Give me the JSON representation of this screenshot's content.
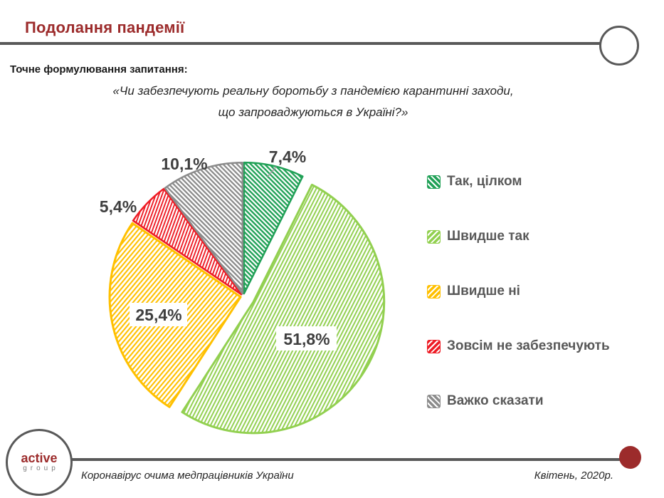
{
  "slide": {
    "title": "Подолання пандемії",
    "question_label": "Точне формулювання запитання:",
    "question_line1": "«Чи забезпечують реальну боротьбу з пандемією карантинні заходи,",
    "question_line2": "що запроваджуються в Україні?»"
  },
  "chart_data": {
    "type": "pie",
    "categories": [
      "Так, цілком",
      "Швидше так",
      "Швидше ні",
      "Зовсім не забезпечують",
      "Важко сказати"
    ],
    "values": [
      7.4,
      51.8,
      25.4,
      5.4,
      10.1
    ],
    "labels_formatted": [
      "7,4%",
      "51,8%",
      "25,4%",
      "5,4%",
      "10,1%"
    ],
    "colors": [
      "#21A157",
      "#92D050",
      "#FFC000",
      "#EE1C25",
      "#8C8C8C"
    ],
    "start_angle_deg": 0,
    "direction": "clockwise",
    "exploded_slice": "Швидше так",
    "fill_style": "diagonal-hatch",
    "legend_position": "right"
  },
  "footer": {
    "logo_line1": "active",
    "logo_line2": "group",
    "source": "Коронавірус очима медпрацівників України",
    "date": "Квітень, 2020р."
  },
  "theme": {
    "accent_red": "#9C2B2B",
    "line_gray": "#595959",
    "label_gray": "#3F3F3F"
  }
}
